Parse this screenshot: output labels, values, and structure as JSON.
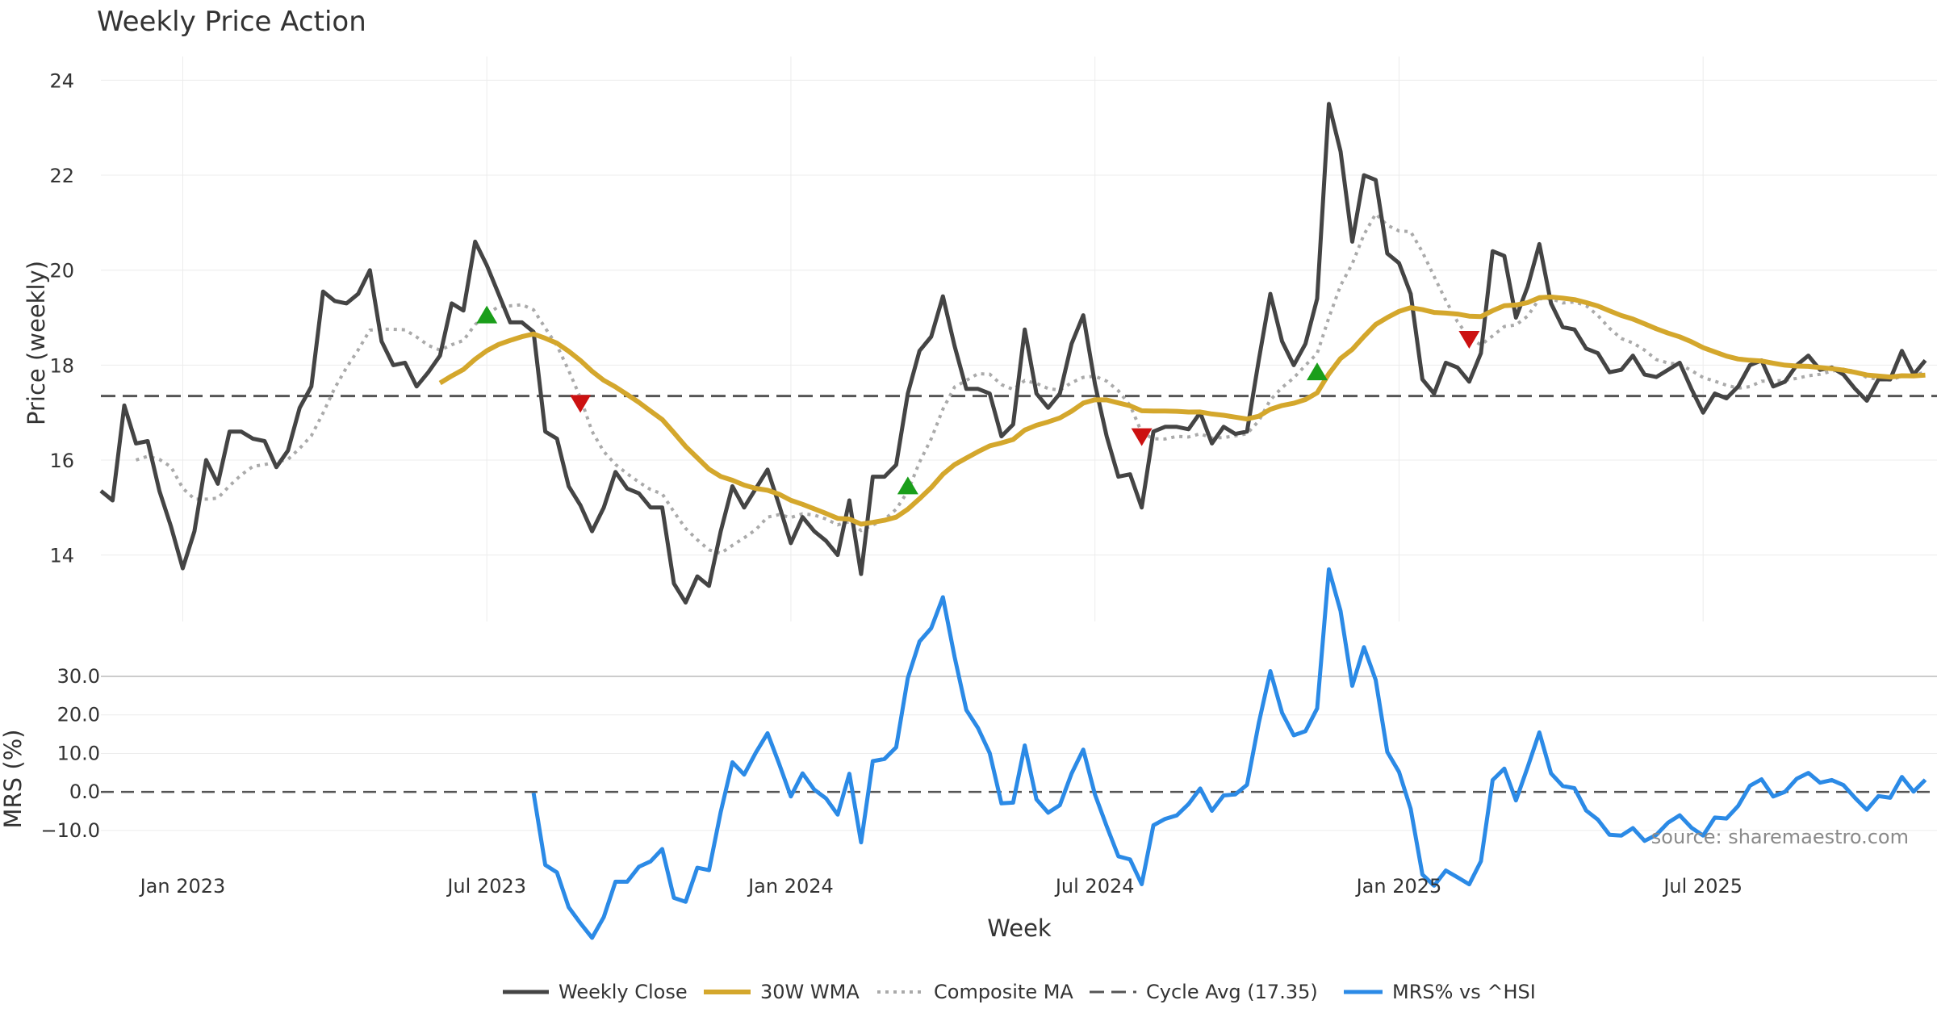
{
  "chart_data": {
    "type": "line",
    "title": "Weekly Price Action",
    "xlabel": "Week",
    "source": "source: sharemaestro.com",
    "x_ticks": [
      "Jan 2023",
      "Jul 2023",
      "Jan 2024",
      "Jul 2024",
      "Jan 2025",
      "Jul 2025"
    ],
    "x_tick_weeks": [
      7,
      33,
      59,
      85,
      111,
      137
    ],
    "x_range": [
      0,
      157
    ],
    "price_panel": {
      "ylabel": "Price (weekly)",
      "ylim": [
        12.6,
        24.5
      ],
      "y_ticks": [
        14,
        16,
        18,
        20,
        22,
        24
      ],
      "cycle_avg": 17.35,
      "weekly_close": [
        15.35,
        15.15,
        17.15,
        16.35,
        16.4,
        15.35,
        14.6,
        13.72,
        14.5,
        16.0,
        15.5,
        16.6,
        16.6,
        16.45,
        16.4,
        15.85,
        16.2,
        17.1,
        17.55,
        19.55,
        19.35,
        19.3,
        19.5,
        20.0,
        18.5,
        18.0,
        18.05,
        17.55,
        17.85,
        18.2,
        19.3,
        19.15,
        20.6,
        20.1,
        19.5,
        18.9,
        18.9,
        18.7,
        16.6,
        16.45,
        15.45,
        15.05,
        14.5,
        15.0,
        15.75,
        15.4,
        15.3,
        15.0,
        15.0,
        13.4,
        13.0,
        13.55,
        13.35,
        14.5,
        15.45,
        15.0,
        15.4,
        15.8,
        15.05,
        14.25,
        14.8,
        14.5,
        14.3,
        14.0,
        15.15,
        13.6,
        15.65,
        15.65,
        15.9,
        17.4,
        18.3,
        18.6,
        19.45,
        18.4,
        17.5,
        17.5,
        17.4,
        16.5,
        16.75,
        18.75,
        17.4,
        17.1,
        17.4,
        18.45,
        19.05,
        17.6,
        16.5,
        15.65,
        15.7,
        15.0,
        16.6,
        16.7,
        16.7,
        16.65,
        17.0,
        16.35,
        16.7,
        16.55,
        16.6,
        18.1,
        19.5,
        18.5,
        18.0,
        18.45,
        19.4,
        23.5,
        22.5,
        20.6,
        22.0,
        21.9,
        20.35,
        20.15,
        19.5,
        17.7,
        17.4,
        18.05,
        17.95,
        17.65,
        18.25,
        20.4,
        20.3,
        19.0,
        19.65,
        20.55,
        19.3,
        18.8,
        18.75,
        18.35,
        18.25,
        17.85,
        17.9,
        18.2,
        17.8,
        17.75,
        17.9,
        18.05,
        17.5,
        17.0,
        17.4,
        17.3,
        17.55,
        18.0,
        18.1,
        17.55,
        17.65,
        18.0,
        18.2,
        17.9,
        17.95,
        17.8,
        17.5,
        17.25,
        17.7,
        17.7,
        18.3,
        17.8,
        18.1
      ]
    },
    "mrs_panel": {
      "ylabel": "MRS (%)",
      "ylim": [
        -14,
        30
      ],
      "y_ticks": [
        "30.0",
        "20.0",
        "10.0",
        "0.0",
        "−10.0"
      ],
      "y_tick_values": [
        30,
        20,
        10,
        0,
        -10
      ],
      "baseline": 0
    },
    "legend": [
      "Weekly Close",
      "30W WMA",
      "Composite MA",
      "Cycle Avg (17.35)",
      "MRS% vs ^HSI"
    ],
    "markers": {
      "buy": [
        {
          "week": 33,
          "value": 19.05
        },
        {
          "week": 69,
          "value": 15.45
        },
        {
          "week": 104,
          "value": 17.85
        }
      ],
      "sell": [
        {
          "week": 41,
          "value": 17.2
        },
        {
          "week": 89,
          "value": 16.5
        },
        {
          "week": 117,
          "value": 18.55
        }
      ]
    },
    "colors": {
      "close": "#444444",
      "wma": "#d4a72c",
      "composite": "#aaaaaa",
      "cycle": "#555555",
      "mrs": "#2b8ae6",
      "buy": "#1a9e1a",
      "sell": "#cc1111",
      "grid": "#ececec"
    }
  }
}
